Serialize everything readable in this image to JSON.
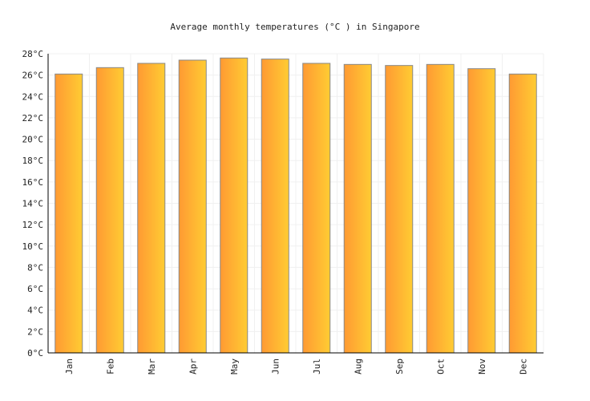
{
  "chart_data": {
    "type": "bar",
    "title": "Average monthly temperatures (°C ) in Singapore",
    "xlabel": "",
    "ylabel": "",
    "categories": [
      "Jan",
      "Feb",
      "Mar",
      "Apr",
      "May",
      "Jun",
      "Jul",
      "Aug",
      "Sep",
      "Oct",
      "Nov",
      "Dec"
    ],
    "values": [
      26.1,
      26.7,
      27.1,
      27.4,
      27.6,
      27.5,
      27.1,
      27.0,
      26.9,
      27.0,
      26.6,
      26.1
    ],
    "ylim": [
      0,
      28
    ],
    "ytick_values": [
      0,
      2,
      4,
      6,
      8,
      10,
      12,
      14,
      16,
      18,
      20,
      22,
      24,
      26,
      28
    ],
    "ytick_labels": [
      "0°C",
      "2°C",
      "4°C",
      "6°C",
      "8°C",
      "10°C",
      "12°C",
      "14°C",
      "16°C",
      "18°C",
      "20°C",
      "22°C",
      "24°C",
      "26°C",
      "28°C"
    ],
    "grid": true,
    "legend": "none",
    "colors": {
      "bar_left": "#ff9a33",
      "bar_right": "#ffcc33",
      "bar_stroke": "#888888",
      "grid": "#f0f0f0",
      "axis": "#000000"
    }
  }
}
